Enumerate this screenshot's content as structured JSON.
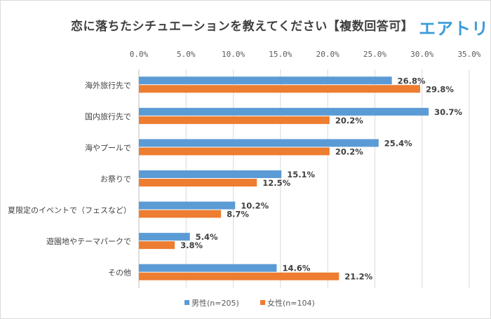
{
  "logo_text": "エアトリ",
  "chart_data": {
    "type": "bar",
    "orientation": "horizontal",
    "title": "恋に落ちたシチュエーションを教えてください【複数回答可】",
    "categories": [
      "海外旅行先で",
      "国内旅行先で",
      "海やプールで",
      "お祭りで",
      "夏限定のイベントで（フェスなど）",
      "遊園地やテーマパークで",
      "その他"
    ],
    "series": [
      {
        "name": "男性(n=205)",
        "color": "#5b9bd5",
        "values": [
          26.8,
          30.7,
          25.4,
          15.1,
          10.2,
          5.4,
          14.6
        ]
      },
      {
        "name": "女性(n=104)",
        "color": "#ed7d31",
        "values": [
          29.8,
          20.2,
          20.2,
          12.5,
          8.7,
          3.8,
          21.2
        ]
      }
    ],
    "xlim": [
      0,
      35
    ],
    "xticks": [
      "0.0%",
      "5.0%",
      "10.0%",
      "15.0%",
      "20.0%",
      "25.0%",
      "30.0%",
      "35.0%"
    ],
    "xaxis_position": "top",
    "grid": true,
    "legend": "bottom",
    "data_label_suffix": "%"
  }
}
